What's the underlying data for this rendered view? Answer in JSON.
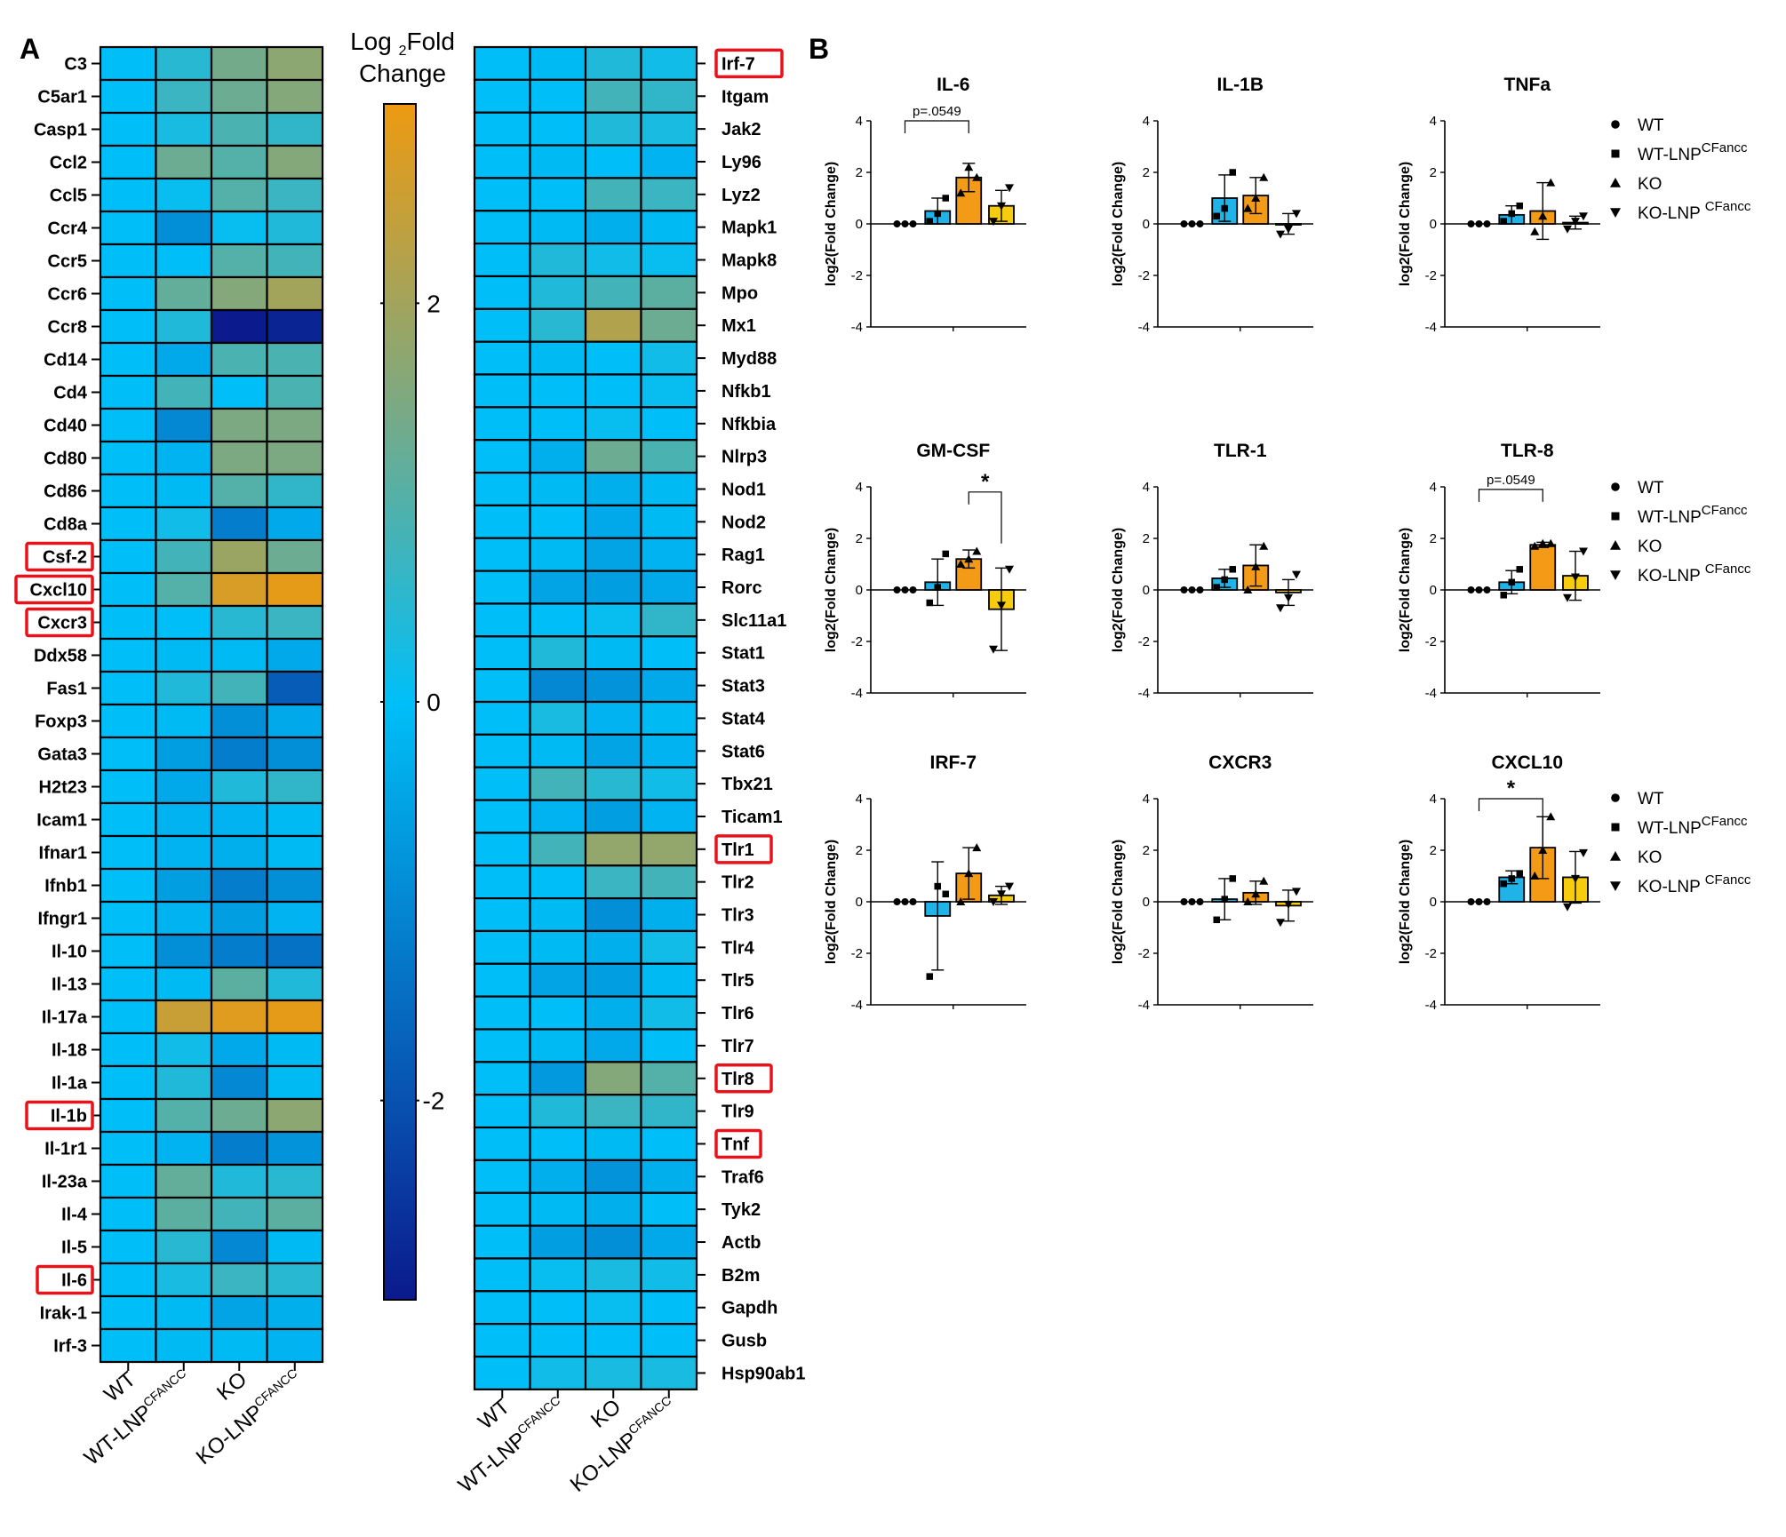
{
  "panel_labels": {
    "A": "A",
    "B": "B"
  },
  "heatmap": {
    "colorbar_title_prefix": "Log",
    "colorbar_title_subscript": "2",
    "colorbar_title_suffix": "Fold",
    "colorbar_title_line2": "Change",
    "colorbar_range": [
      -3,
      3
    ],
    "colorbar_ticks": [
      "2",
      "0",
      "-2"
    ],
    "colorbar_tick_values": [
      2,
      0,
      -2
    ],
    "colors": {
      "low": "#0b1a8c",
      "mid": "#00bff8",
      "midhigh": "#84a87a",
      "high": "#ee9a10"
    },
    "highlight_color": "#e8131a",
    "columns": [
      {
        "main": "WT",
        "sup": ""
      },
      {
        "main": "WT-LNP",
        "sup": "CFANCC"
      },
      {
        "main": "KO",
        "sup": ""
      },
      {
        "main": "KO-LNP",
        "sup": "CFANCC"
      }
    ],
    "left_genes": [
      "C3",
      "C5ar1",
      "Casp1",
      "Ccl2",
      "Ccl5",
      "Ccr4",
      "Ccr5",
      "Ccr6",
      "Ccr8",
      "Cd14",
      "Cd4",
      "Cd40",
      "Cd80",
      "Cd86",
      "Cd8a",
      "Csf-2",
      "Cxcl10",
      "Cxcr3",
      "Ddx58",
      "Fas1",
      "Foxp3",
      "Gata3",
      "H2t23",
      "Icam1",
      "Ifnar1",
      "Ifnb1",
      "Ifngr1",
      "Il-10",
      "Il-13",
      "Il-17a",
      "Il-18",
      "Il-1a",
      "Il-1b",
      "Il-1r1",
      "Il-23a",
      "Il-4",
      "Il-5",
      "Il-6",
      "Irak-1",
      "Irf-3"
    ],
    "left_values": [
      [
        0,
        0.5,
        1.4,
        1.7
      ],
      [
        0,
        0.7,
        1.3,
        1.6
      ],
      [
        0,
        0.3,
        0.9,
        0.6
      ],
      [
        0,
        1.3,
        1.0,
        1.6
      ],
      [
        0,
        0.1,
        1.0,
        0.7
      ],
      [
        0,
        -0.9,
        0.1,
        0.4
      ],
      [
        0,
        0.0,
        1.0,
        0.8
      ],
      [
        0,
        1.2,
        1.6,
        2.0
      ],
      [
        0,
        0.4,
        -3.0,
        -2.8
      ],
      [
        0,
        -0.4,
        0.9,
        0.9
      ],
      [
        0,
        0.8,
        0.0,
        0.9
      ],
      [
        0,
        -1.0,
        1.5,
        1.5
      ],
      [
        0,
        -0.2,
        1.5,
        1.5
      ],
      [
        0,
        -0.1,
        1.0,
        0.6
      ],
      [
        0,
        0.2,
        -1.2,
        -0.4
      ],
      [
        0,
        0.8,
        1.9,
        1.3
      ],
      [
        0,
        1.0,
        2.7,
        2.9
      ],
      [
        0,
        0.0,
        0.5,
        0.7
      ],
      [
        0,
        -0.1,
        -0.1,
        -0.4
      ],
      [
        0,
        0.4,
        0.8,
        -1.8
      ],
      [
        0,
        -0.1,
        -0.9,
        -0.4
      ],
      [
        0,
        -0.6,
        -1.2,
        -0.9
      ],
      [
        0,
        -0.4,
        0.4,
        0.6
      ],
      [
        0,
        -0.2,
        -0.2,
        -0.1
      ],
      [
        0,
        -0.2,
        -0.3,
        -0.1
      ],
      [
        0,
        -0.6,
        -1.2,
        -0.9
      ],
      [
        0,
        -0.2,
        -0.6,
        -0.2
      ],
      [
        0,
        -0.9,
        -1.2,
        -1.4
      ],
      [
        0,
        -0.1,
        1.1,
        0.4
      ],
      [
        0,
        2.5,
        2.8,
        2.9
      ],
      [
        0,
        0.2,
        -0.4,
        -0.1
      ],
      [
        0,
        0.4,
        -1.0,
        -0.1
      ],
      [
        0,
        1.0,
        1.3,
        1.7
      ],
      [
        0,
        -0.2,
        -1.2,
        -0.8
      ],
      [
        0,
        1.2,
        0.4,
        0.5
      ],
      [
        0,
        1.1,
        0.8,
        1.1
      ],
      [
        0,
        0.5,
        -1.0,
        -0.1
      ],
      [
        0,
        0.3,
        0.7,
        0.5
      ],
      [
        0,
        -0.1,
        -0.5,
        -0.3
      ],
      [
        0,
        -0.1,
        -0.1,
        -0.2
      ]
    ],
    "left_highlighted": [
      "Csf-2",
      "Cxcl10",
      "Cxcr3",
      "Il-1b",
      "Il-6"
    ],
    "right_genes": [
      "Irf-7",
      "Itgam",
      "Jak2",
      "Ly96",
      "Lyz2",
      "Mapk1",
      "Mapk8",
      "Mpo",
      "Mx1",
      "Myd88",
      "Nfkb1",
      "Nfkbia",
      "Nlrp3",
      "Nod1",
      "Nod2",
      "Rag1",
      "Rorc",
      "Slc11a1",
      "Stat1",
      "Stat3",
      "Stat4",
      "Stat6",
      "Tbx21",
      "Ticam1",
      "Tlr1",
      "Tlr2",
      "Tlr3",
      "Tlr4",
      "Tlr5",
      "Tlr6",
      "Tlr7",
      "Tlr8",
      "Tlr9",
      "Tnf",
      "Traf6",
      "Tyk2",
      "Actb",
      "B2m",
      "Gapdh",
      "Gusb",
      "Hsp90ab1"
    ],
    "right_values": [
      [
        0,
        -0.1,
        0.4,
        0.2
      ],
      [
        0,
        0.0,
        0.8,
        0.6
      ],
      [
        0,
        0.0,
        0.4,
        0.3
      ],
      [
        0,
        -0.1,
        0.0,
        -0.2
      ],
      [
        0,
        0.0,
        0.8,
        0.7
      ],
      [
        0,
        -0.1,
        -0.3,
        -0.1
      ],
      [
        0,
        0.4,
        0.2,
        0.1
      ],
      [
        0,
        0.4,
        0.8,
        1.1
      ],
      [
        0,
        0.5,
        2.2,
        1.3
      ],
      [
        0,
        -0.1,
        0.0,
        0.2
      ],
      [
        0,
        0.0,
        0.0,
        0.1
      ],
      [
        0,
        0.0,
        0.1,
        0.0
      ],
      [
        0,
        -0.3,
        1.3,
        0.9
      ],
      [
        0,
        -0.1,
        -0.3,
        -0.1
      ],
      [
        0,
        0.0,
        -0.4,
        -0.1
      ],
      [
        0,
        -0.1,
        -0.5,
        -0.2
      ],
      [
        0,
        -0.5,
        -0.6,
        -0.4
      ],
      [
        0,
        0.0,
        0.1,
        0.6
      ],
      [
        0,
        0.4,
        -0.1,
        0.0
      ],
      [
        0,
        -1.0,
        -0.8,
        -0.4
      ],
      [
        0,
        0.3,
        -0.2,
        -0.1
      ],
      [
        0,
        -0.1,
        -0.5,
        -0.2
      ],
      [
        0,
        0.8,
        0.5,
        0.2
      ],
      [
        0,
        -0.2,
        -0.6,
        -0.2
      ],
      [
        0,
        0.8,
        1.8,
        1.8
      ],
      [
        0,
        0.0,
        0.7,
        0.8
      ],
      [
        0,
        -0.1,
        -0.9,
        -0.3
      ],
      [
        0,
        -0.1,
        -0.3,
        0.2
      ],
      [
        0,
        -0.5,
        -0.6,
        -0.1
      ],
      [
        0,
        0.0,
        -0.3,
        0.2
      ],
      [
        0,
        -0.1,
        -0.4,
        0.0
      ],
      [
        0,
        -0.7,
        1.6,
        1.0
      ],
      [
        0,
        0.4,
        0.7,
        0.6
      ],
      [
        0,
        0.0,
        -0.1,
        0.0
      ],
      [
        0,
        -0.3,
        -0.8,
        -0.3
      ],
      [
        0,
        -0.1,
        -0.3,
        0.0
      ],
      [
        0,
        -0.6,
        -0.9,
        -0.4
      ],
      [
        0,
        0.1,
        0.3,
        0.2
      ],
      [
        0,
        0.0,
        0.1,
        0.0
      ],
      [
        0,
        0.0,
        0.0,
        0.0
      ],
      [
        0,
        0.2,
        0.3,
        0.3
      ]
    ],
    "right_highlighted": [
      "Irf-7",
      "Tlr1",
      "Tlr8",
      "Tnf"
    ]
  },
  "chart_data": {
    "type": "bar",
    "groups": [
      "WT",
      "WT-LNP",
      "KO",
      "KO-LNP"
    ],
    "group_colors": [
      "#ffffff",
      "#1fb3e8",
      "#f39a16",
      "#f7cc0f"
    ],
    "ylabel": "log2(Fold Change)",
    "ylim": [
      -4,
      4
    ],
    "yticks": [
      "4",
      "2",
      "0",
      "-2",
      "-4"
    ],
    "legend": {
      "labels": [
        "WT",
        "WT-LNP",
        "KO",
        "KO-LNP "
      ],
      "sups": [
        "",
        "CFancc",
        "",
        "CFancc"
      ],
      "markers": [
        "circle",
        "square",
        "triangle-up",
        "triangle-down"
      ]
    },
    "panels": [
      {
        "title": "IL-6",
        "means": [
          0,
          0.5,
          1.8,
          0.7
        ],
        "sd": [
          0,
          0.5,
          0.55,
          0.6
        ],
        "points": [
          [
            0,
            0,
            0
          ],
          [
            0.1,
            0.4,
            1.0
          ],
          [
            1.2,
            2.2,
            1.8
          ],
          [
            0.1,
            0.7,
            1.4
          ]
        ],
        "annotation": {
          "text": "p=.0549",
          "from": 0,
          "to": 2,
          "y": 4.0
        }
      },
      {
        "title": "IL-1B",
        "means": [
          0,
          1.0,
          1.1,
          0
        ],
        "sd": [
          0,
          0.9,
          0.7,
          0.4
        ],
        "points": [
          [
            0,
            0,
            0
          ],
          [
            0.3,
            0.6,
            2.0
          ],
          [
            0.6,
            1.0,
            1.8
          ],
          [
            -0.4,
            -0.2,
            0.4
          ]
        ]
      },
      {
        "title": "TNFa",
        "means": [
          0,
          0.35,
          0.5,
          0.05
        ],
        "sd": [
          0,
          0.35,
          1.1,
          0.25
        ],
        "points": [
          [
            0,
            0,
            0
          ],
          [
            0.1,
            0.4,
            0.7
          ],
          [
            -0.3,
            0.3,
            1.6
          ],
          [
            -0.2,
            0.1,
            0.3
          ]
        ]
      },
      {
        "title": "GM-CSF",
        "means": [
          0,
          0.3,
          1.2,
          -0.75
        ],
        "sd": [
          0,
          0.9,
          0.35,
          1.6
        ],
        "points": [
          [
            0,
            0,
            0
          ],
          [
            -0.5,
            0.1,
            1.4
          ],
          [
            1.0,
            1.2,
            1.5
          ],
          [
            -2.3,
            -0.6,
            0.8
          ]
        ],
        "annotation": {
          "text": "*",
          "from": 2,
          "to": 3,
          "y": 3.8
        }
      },
      {
        "title": "TLR-1",
        "means": [
          0,
          0.45,
          0.95,
          -0.1
        ],
        "sd": [
          0,
          0.35,
          0.8,
          0.5
        ],
        "points": [
          [
            0,
            0,
            0
          ],
          [
            0.1,
            0.4,
            0.8
          ],
          [
            0.0,
            0.9,
            1.7
          ],
          [
            -0.7,
            -0.3,
            0.6
          ]
        ]
      },
      {
        "title": "TLR-8",
        "means": [
          0,
          0.3,
          1.75,
          0.55
        ],
        "sd": [
          0,
          0.45,
          0.1,
          0.95
        ],
        "points": [
          [
            0,
            0,
            0
          ],
          [
            -0.2,
            0.3,
            0.8
          ],
          [
            1.7,
            1.8,
            1.8
          ],
          [
            -0.3,
            0.5,
            1.5
          ]
        ],
        "annotation": {
          "text": "p=.0549",
          "from": 0,
          "to": 2,
          "y": 3.9
        }
      },
      {
        "title": "IRF-7",
        "means": [
          0,
          -0.55,
          1.1,
          0.25
        ],
        "sd": [
          0,
          2.1,
          1.0,
          0.35
        ],
        "points": [
          [
            0,
            0,
            0
          ],
          [
            -2.9,
            0.6,
            0.3
          ],
          [
            0.0,
            1.1,
            2.1
          ],
          [
            0.0,
            0.3,
            0.6
          ]
        ]
      },
      {
        "title": "CXCR3",
        "means": [
          0,
          0.1,
          0.35,
          -0.15
        ],
        "sd": [
          0,
          0.8,
          0.45,
          0.6
        ],
        "points": [
          [
            0,
            0,
            0
          ],
          [
            -0.7,
            0.1,
            0.9
          ],
          [
            0.0,
            0.3,
            0.8
          ],
          [
            -0.8,
            -0.1,
            0.4
          ]
        ]
      },
      {
        "title": "CXCL10",
        "means": [
          0,
          0.95,
          2.1,
          0.95
        ],
        "sd": [
          0,
          0.25,
          1.2,
          1.0
        ],
        "points": [
          [
            0,
            0,
            0
          ],
          [
            0.7,
            0.9,
            1.1
          ],
          [
            1.0,
            2.0,
            3.3
          ],
          [
            -0.2,
            0.9,
            1.9
          ]
        ],
        "annotation": {
          "text": "*",
          "from": 0,
          "to": 2,
          "y": 4.0
        }
      }
    ]
  }
}
